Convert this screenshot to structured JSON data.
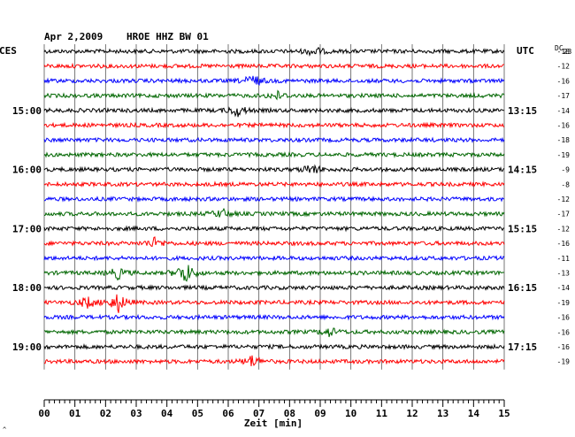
{
  "header": {
    "date": "Apr 2,2009",
    "station": "HROE HHZ BW 01"
  },
  "left_tz": "CES",
  "right_tz": "UTC",
  "dc_label": "DC",
  "dc_sub": "23",
  "corner_mark": "^",
  "chart_data": {
    "type": "line",
    "title": "Apr 2,2009  HROE HHZ BW 01",
    "xlabel": "Zeit [min]",
    "ylabel": "",
    "xlim": [
      0,
      15
    ],
    "x_ticks": [
      "00",
      "01",
      "02",
      "03",
      "04",
      "05",
      "06",
      "07",
      "08",
      "09",
      "10",
      "11",
      "12",
      "13",
      "14",
      "15"
    ],
    "trace_colors": [
      "#000000",
      "#ff0000",
      "#0000ff",
      "#006600"
    ],
    "left_time_labels": [
      {
        "row": 4,
        "label": "15:00"
      },
      {
        "row": 8,
        "label": "16:00"
      },
      {
        "row": 12,
        "label": "17:00"
      },
      {
        "row": 16,
        "label": "18:00"
      },
      {
        "row": 20,
        "label": "19:00"
      }
    ],
    "right_time_labels": [
      {
        "row": 4,
        "label": "13:15"
      },
      {
        "row": 8,
        "label": "14:15"
      },
      {
        "row": 12,
        "label": "15:15"
      },
      {
        "row": 16,
        "label": "16:15"
      },
      {
        "row": 20,
        "label": "17:15"
      }
    ],
    "dc_offsets": [
      "-18",
      "-12",
      "-16",
      "-17",
      "-14",
      "-16",
      "-18",
      "-19",
      "-9",
      "-8",
      "-12",
      "-17",
      "-12",
      "-16",
      "-11",
      "-13",
      "-14",
      "-19",
      "-16",
      "-16",
      "-16",
      "-19"
    ],
    "events": [
      {
        "row": 0,
        "minute": 8.8,
        "amp": 0.35
      },
      {
        "row": 2,
        "minute": 6.8,
        "amp": 0.5
      },
      {
        "row": 3,
        "minute": 7.6,
        "amp": 0.3
      },
      {
        "row": 4,
        "minute": 6.3,
        "amp": 0.45
      },
      {
        "row": 8,
        "minute": 8.7,
        "amp": 0.4
      },
      {
        "row": 11,
        "minute": 5.8,
        "amp": 0.35
      },
      {
        "row": 13,
        "minute": 3.6,
        "amp": 0.4
      },
      {
        "row": 15,
        "minute": 4.6,
        "amp": 0.9
      },
      {
        "row": 15,
        "minute": 2.4,
        "amp": 0.45
      },
      {
        "row": 17,
        "minute": 2.4,
        "amp": 0.8
      },
      {
        "row": 17,
        "minute": 1.4,
        "amp": 0.45
      },
      {
        "row": 19,
        "minute": 9.3,
        "amp": 0.35
      },
      {
        "row": 21,
        "minute": 6.8,
        "amp": 0.5
      }
    ]
  }
}
